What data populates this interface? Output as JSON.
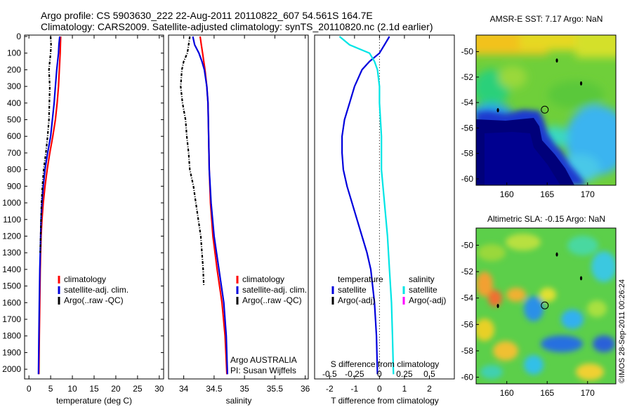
{
  "header": {
    "line1": "Argo profile: CS 5903630_222 22-Aug-2011 20110822_607 54.561S 164.7E",
    "line2": "Climatology: CARS2009. Satellite-adjusted climatology: synTS_20110820.nc (2.1d earlier)"
  },
  "colors": {
    "climatology": "#ff0000",
    "satellite": "#0000dd",
    "argo": "#000000",
    "salinity_satellite": "#00e5e5",
    "salinity_argo": "#ff00ff"
  },
  "chart_data": [
    {
      "type": "line",
      "name": "temperature-profile",
      "xlabel": "temperature (deg C)",
      "xlim": [
        -1,
        31
      ],
      "ylim": [
        2050,
        0
      ],
      "xticks": [
        0,
        5,
        10,
        15,
        20,
        25,
        30
      ],
      "yticks": [
        0,
        100,
        200,
        300,
        400,
        500,
        600,
        700,
        800,
        900,
        1000,
        1100,
        1200,
        1300,
        1400,
        1500,
        1600,
        1700,
        1800,
        1900,
        2000
      ],
      "legend": [
        "climatology",
        "satellite-adj. clim.",
        "Argo(..raw -QC)"
      ],
      "legend_position": "lower-right",
      "series": [
        {
          "name": "climatology",
          "key": "climatology",
          "depth": [
            0,
            100,
            200,
            300,
            400,
            500,
            600,
            700,
            800,
            900,
            1000,
            1100,
            1200,
            1300,
            1400,
            1600,
            1800,
            2030
          ],
          "values": [
            7.3,
            7.2,
            7.0,
            6.8,
            6.5,
            6.1,
            5.5,
            4.8,
            4.2,
            3.7,
            3.3,
            3.0,
            2.8,
            2.7,
            2.6,
            2.5,
            2.4,
            2.3
          ]
        },
        {
          "name": "satellite-adj. clim.",
          "key": "satellite",
          "depth": [
            0,
            50,
            100,
            200,
            300,
            400,
            500,
            600,
            700,
            800,
            900,
            1000,
            1100,
            1200,
            1300,
            1400,
            1600,
            1800,
            2030
          ],
          "values": [
            7.1,
            6.9,
            6.8,
            6.4,
            6.1,
            5.8,
            5.4,
            5.0,
            4.3,
            3.7,
            3.3,
            3.0,
            2.8,
            2.7,
            2.6,
            2.5,
            2.4,
            2.3,
            2.2
          ]
        },
        {
          "name": "Argo(..raw -QC)",
          "key": "argo",
          "style": "dashdot",
          "depth": [
            0,
            50,
            100,
            150,
            200,
            250,
            300,
            400,
            500,
            600,
            700,
            800,
            900,
            1000,
            1100,
            1200,
            1300
          ],
          "values": [
            5.0,
            5.1,
            5.0,
            4.8,
            4.6,
            4.7,
            4.8,
            4.7,
            4.6,
            4.3,
            3.9,
            3.4,
            3.1,
            2.9,
            2.8,
            2.7,
            2.6
          ]
        }
      ]
    },
    {
      "type": "line",
      "name": "salinity-profile",
      "xlabel": "salinity",
      "xlim": [
        33.75,
        36.05
      ],
      "ylim": [
        2050,
        0
      ],
      "xticks": [
        34,
        34.5,
        35,
        35.5,
        36
      ],
      "legend": [
        "climatology",
        "satellite-adj. clim.",
        "Argo(..raw -QC)"
      ],
      "legend_position": "lower-right",
      "annotation": [
        "Argo AUSTRALIA",
        "PI: Susan Wijffels"
      ],
      "series": [
        {
          "name": "climatology",
          "key": "climatology",
          "depth": [
            0,
            50,
            100,
            150,
            200,
            300,
            400,
            600,
            800,
            1000,
            1200,
            1400,
            1600,
            1800,
            2030
          ],
          "values": [
            34.27,
            34.29,
            34.31,
            34.33,
            34.35,
            34.38,
            34.4,
            34.41,
            34.42,
            34.44,
            34.48,
            34.55,
            34.63,
            34.68,
            34.71
          ]
        },
        {
          "name": "satellite-adj. clim.",
          "key": "satellite",
          "depth": [
            0,
            50,
            100,
            150,
            200,
            300,
            400,
            600,
            800,
            1000,
            1200,
            1400,
            1600,
            1800,
            2030
          ],
          "values": [
            34.15,
            34.18,
            34.25,
            34.3,
            34.34,
            34.38,
            34.4,
            34.41,
            34.42,
            34.45,
            34.5,
            34.58,
            34.66,
            34.7,
            34.72
          ]
        },
        {
          "name": "Argo(..raw -QC)",
          "key": "argo",
          "style": "dashdot",
          "depth": [
            0,
            50,
            100,
            150,
            200,
            300,
            400,
            500,
            600,
            700,
            800,
            900,
            1000,
            1100,
            1200,
            1300,
            1400,
            1500
          ],
          "values": [
            34.1,
            34.08,
            34.06,
            34.0,
            33.97,
            33.95,
            33.98,
            34.03,
            34.05,
            34.08,
            34.1,
            34.16,
            34.2,
            34.24,
            34.28,
            34.3,
            34.32,
            34.33
          ]
        }
      ]
    },
    {
      "type": "line",
      "name": "difference-profile",
      "xlabel": "T difference from climatology",
      "xlim": [
        -2.6,
        3.0
      ],
      "ylim": [
        2050,
        0
      ],
      "xticks": [
        -2,
        -1,
        0,
        1,
        2
      ],
      "top_xlabel": "S difference from climatology",
      "top_xtick_labels": [
        "-0.5",
        "-0.25",
        "0",
        "0.25",
        "0.5"
      ],
      "top_xtick_positions": [
        -2,
        -1,
        0,
        1,
        2
      ],
      "legend_left_title": "temperature",
      "legend_left": [
        "satellite",
        "Argo(-adj)"
      ],
      "legend_right_title": "salinity",
      "legend_right": [
        "satellite",
        "Argo(-adj)"
      ],
      "series": [
        {
          "name": "satellite",
          "key": "satellite",
          "quantity": "temperature",
          "depth": [
            0,
            50,
            100,
            150,
            200,
            300,
            400,
            500,
            600,
            700,
            800,
            900,
            1000,
            1100,
            1200,
            1300,
            1400,
            1600,
            1800,
            2030
          ],
          "values": [
            0.4,
            0.2,
            0.0,
            -0.4,
            -0.7,
            -1.0,
            -1.2,
            -1.4,
            -1.5,
            -1.5,
            -1.45,
            -1.3,
            -1.1,
            -0.9,
            -0.7,
            -0.5,
            -0.35,
            -0.2,
            -0.12,
            -0.08
          ]
        },
        {
          "name": "satellite",
          "key": "salinity_satellite",
          "quantity": "salinity",
          "depth": [
            0,
            50,
            100,
            150,
            200,
            300,
            400,
            600,
            800,
            1000,
            1200,
            1400,
            1600,
            1800,
            2030
          ],
          "values": [
            -0.4,
            -0.3,
            -0.1,
            -0.05,
            -0.02,
            0.0,
            0.0,
            0.02,
            0.02,
            0.05,
            0.08,
            0.1,
            0.12,
            0.13,
            0.14
          ]
        }
      ]
    }
  ],
  "maps": [
    {
      "name": "sst-map",
      "title": "AMSR-E SST: 7.17 Argo: NaN",
      "xticks": [
        160,
        165,
        170
      ],
      "yticks": [
        -50,
        -52,
        -54,
        -56,
        -58,
        -60
      ],
      "xlim": [
        156.2,
        173.5
      ],
      "ylim": [
        -60.5,
        -48.7
      ],
      "profile_marker": [
        164.7,
        -54.56
      ]
    },
    {
      "name": "sla-map",
      "title": "Altimetric SLA: -0.15 Argo: NaN",
      "xticks": [
        160,
        165,
        170
      ],
      "yticks": [
        -50,
        -52,
        -54,
        -56,
        -58,
        -60
      ],
      "xlim": [
        156.2,
        173.5
      ],
      "ylim": [
        -60.5,
        -48.7
      ],
      "profile_marker": [
        164.7,
        -54.56
      ]
    }
  ],
  "credit": "©IMOS 28-Sep-2011 00:26:24"
}
